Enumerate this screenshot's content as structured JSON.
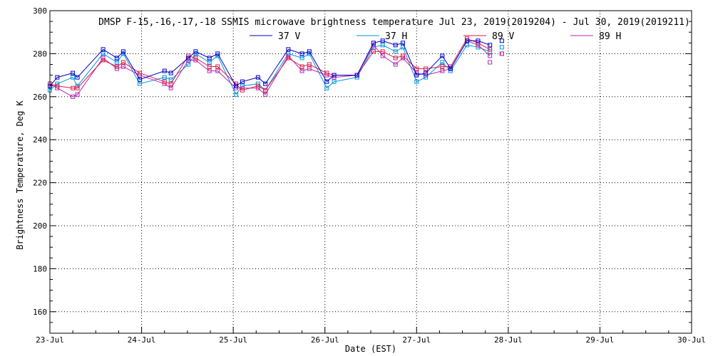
{
  "chart_data": {
    "type": "line",
    "title": "DMSP F-15,-16,-17,-18 SSMIS microwave brightness temperature Jul 23, 2019(2019204) - Jul 30, 2019(2019211)",
    "xlabel": "Date (EST)",
    "ylabel": "Brightness Temperature, Deg K",
    "xlim": [
      0,
      7
    ],
    "ylim": [
      150,
      300
    ],
    "x_ticks": [
      {
        "value": 0,
        "label": "23-Jul"
      },
      {
        "value": 1,
        "label": "24-Jul"
      },
      {
        "value": 2,
        "label": "25-Jul"
      },
      {
        "value": 3,
        "label": "26-Jul"
      },
      {
        "value": 4,
        "label": "27-Jul"
      },
      {
        "value": 5,
        "label": "28-Jul"
      },
      {
        "value": 6,
        "label": "29-Jul"
      },
      {
        "value": 7,
        "label": "30-Jul"
      }
    ],
    "y_ticks": [
      160,
      180,
      200,
      220,
      240,
      260,
      280,
      300
    ],
    "grid": true,
    "legend_position": "top-center",
    "x": [
      0,
      0.08,
      0.25,
      0.3,
      0.58,
      0.73,
      0.8,
      0.98,
      1.25,
      1.32,
      1.51,
      1.59,
      1.74,
      1.83,
      2.03,
      2.1,
      2.27,
      2.35,
      2.6,
      2.75,
      2.83,
      3.02,
      3.1,
      3.35,
      3.53,
      3.63,
      3.77,
      3.85,
      4.0,
      4.1,
      4.28,
      4.37,
      4.55,
      4.67,
      4.8
    ],
    "series": [
      {
        "name": "37 V",
        "color": "#0000c8",
        "values": [
          265,
          269,
          271,
          269,
          282,
          278,
          281,
          268,
          272,
          271,
          278,
          281,
          278,
          280,
          265,
          267,
          269,
          266,
          282,
          280,
          281,
          267,
          270,
          270,
          285,
          286,
          284,
          285,
          270,
          271,
          279,
          273,
          286,
          286,
          284
        ]
      },
      {
        "name": "37 H",
        "color": "#0096e0",
        "values": [
          263,
          266,
          269,
          265,
          280,
          276,
          280,
          266,
          269,
          268,
          275,
          280,
          276,
          279,
          261,
          265,
          266,
          263,
          280,
          278,
          280,
          264,
          267,
          269,
          283,
          284,
          281,
          283,
          267,
          269,
          276,
          272,
          284,
          283,
          281
        ]
      },
      {
        "name": "89 V",
        "color": "#dc1e46",
        "values": [
          266,
          265,
          264,
          264,
          277,
          274,
          276,
          271,
          267,
          266,
          279,
          278,
          274,
          274,
          266,
          263,
          265,
          263,
          278,
          274,
          275,
          271,
          270,
          270,
          281,
          281,
          278,
          279,
          273,
          273,
          274,
          274,
          287,
          285,
          282
        ]
      },
      {
        "name": "89 H",
        "color": "#b428b4",
        "values": [
          266,
          264,
          260,
          261,
          278,
          273,
          274,
          270,
          266,
          264,
          277,
          277,
          272,
          272,
          264,
          264,
          264,
          261,
          279,
          272,
          273,
          270,
          269,
          270,
          284,
          279,
          275,
          278,
          271,
          270,
          272,
          273,
          286,
          284,
          279
        ]
      }
    ],
    "extra_points": [
      {
        "series": "37 H",
        "x": 4.93,
        "y": 283
      },
      {
        "series": "89 V",
        "x": 4.93,
        "y": 280
      },
      {
        "series": "89 H",
        "x": 4.93,
        "y": 280
      },
      {
        "series": "37 V",
        "x": 4.93,
        "y": 286
      },
      {
        "series": "89 H",
        "x": 4.8,
        "y": 276
      }
    ]
  }
}
